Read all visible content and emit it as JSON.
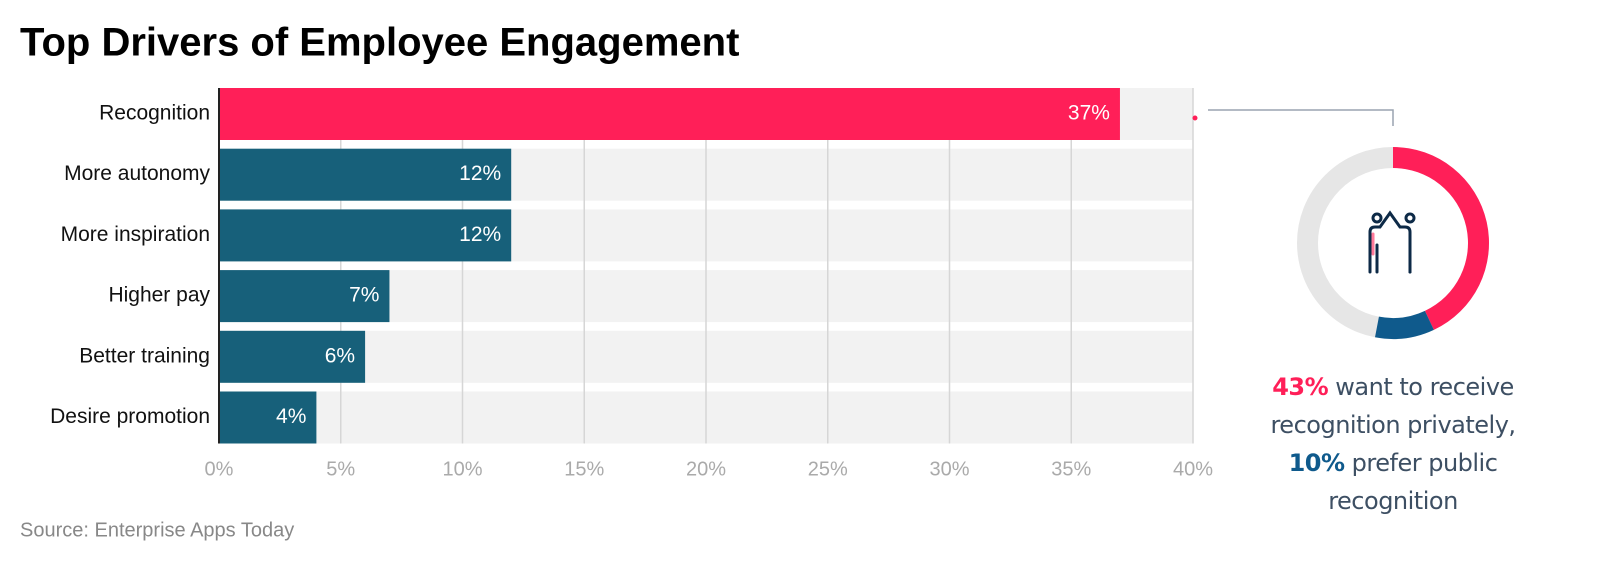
{
  "chart_data": [
    {
      "type": "bar",
      "title": "Top Drivers of Employee Engagement",
      "categories": [
        "Recognition",
        "More autonomy",
        "More inspiration",
        "Higher pay",
        "Better training",
        "Desire promotion"
      ],
      "values": [
        37,
        12,
        12,
        7,
        6,
        4
      ],
      "value_labels": [
        "37%",
        "12%",
        "12%",
        "7%",
        "6%",
        "4%"
      ],
      "colors": [
        "#ff1f58",
        "#17607a",
        "#17607a",
        "#17607a",
        "#17607a",
        "#17607a"
      ],
      "xlim": [
        0,
        40
      ],
      "xticks": [
        {
          "value": 0,
          "label": "0%"
        },
        {
          "value": 5,
          "label": "5%"
        },
        {
          "value": 10,
          "label": "10%"
        },
        {
          "value": 15,
          "label": "15%"
        },
        {
          "value": 20,
          "label": "20%"
        },
        {
          "value": 25,
          "label": "25%"
        },
        {
          "value": 30,
          "label": "30%"
        },
        {
          "value": 35,
          "label": "35%"
        },
        {
          "value": 40,
          "label": "40%"
        }
      ],
      "grid": true,
      "source": "Source: Enterprise Apps Today"
    },
    {
      "type": "pie",
      "values": [
        43,
        10
      ],
      "value_labels": [
        "43%",
        "10%"
      ],
      "colors": [
        "#ff1f58",
        "#0f5a8c"
      ],
      "annotation": [
        "want to receive recognition privately,",
        "prefer public recognition"
      ]
    }
  ]
}
